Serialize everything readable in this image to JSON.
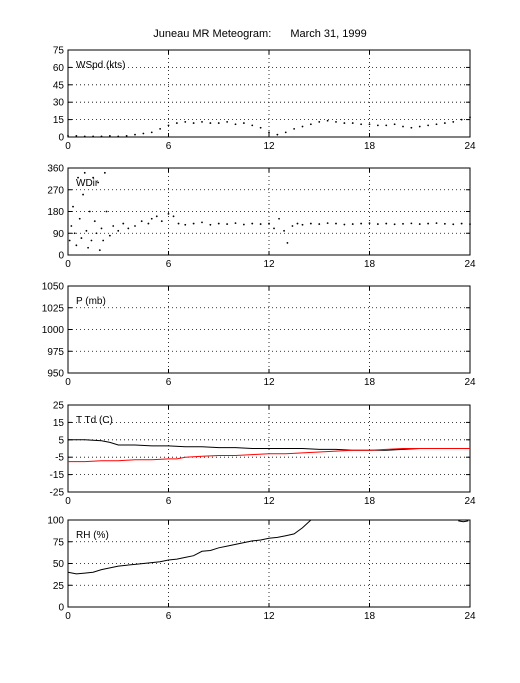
{
  "title": "Juneau MR Meteogram:",
  "date": "March 31, 1999",
  "chart_data": [
    {
      "type": "scatter",
      "label": "WSpd (kts)",
      "xlim": [
        0,
        24
      ],
      "ylim": [
        0,
        75
      ],
      "xticks": [
        "0",
        "6",
        "12",
        "18",
        "24"
      ],
      "yticks": [
        "0",
        "15",
        "30",
        "45",
        "60",
        "75"
      ],
      "grid": true,
      "series": [
        {
          "color": "#000000",
          "x": [
            0,
            0.5,
            1,
            1.5,
            2,
            2.5,
            3,
            3.5,
            4,
            4.5,
            5,
            5.5,
            6,
            6.5,
            7,
            7.5,
            8,
            8.5,
            9,
            9.5,
            10,
            10.5,
            11,
            11.5,
            12,
            12.5,
            13,
            13.5,
            14,
            14.5,
            15,
            15.5,
            16,
            16.5,
            17,
            17.5,
            18,
            18.5,
            19,
            19.5,
            20,
            20.5,
            21,
            21.5,
            22,
            22.5,
            23,
            23.5,
            24
          ],
          "y": [
            1,
            1,
            0.5,
            0.5,
            0.5,
            1,
            0.5,
            1,
            2,
            3,
            4,
            7,
            10,
            12,
            13,
            12,
            13,
            12,
            12,
            13,
            11,
            12,
            10,
            8,
            4,
            2,
            4,
            7,
            9,
            11,
            13,
            14,
            13,
            12,
            12,
            11,
            11,
            10,
            10,
            11,
            9,
            8,
            9,
            10,
            11,
            12,
            13,
            15,
            17
          ]
        }
      ]
    },
    {
      "type": "scatter",
      "label": "WDir",
      "xlim": [
        0,
        24
      ],
      "ylim": [
        0,
        360
      ],
      "xticks": [
        "0",
        "6",
        "12",
        "18",
        "24"
      ],
      "yticks": [
        "0",
        "90",
        "180",
        "270",
        "360"
      ],
      "grid": true,
      "series": [
        {
          "color": "#000000",
          "x": [
            0.1,
            0.2,
            0.3,
            0.4,
            0.5,
            0.6,
            0.7,
            0.8,
            0.9,
            1.0,
            1.1,
            1.2,
            1.3,
            1.4,
            1.5,
            1.6,
            1.7,
            1.8,
            1.9,
            2.0,
            2.1,
            2.2,
            2.3,
            2.5,
            2.7,
            3.0,
            3.3,
            3.6,
            4.0,
            4.4,
            4.8,
            5.0,
            5.3,
            5.6,
            6.0,
            6.3,
            6.6,
            7,
            7.5,
            8,
            8.5,
            9,
            9.5,
            10,
            10.5,
            11,
            11.5,
            12,
            12.3,
            12.6,
            12.9,
            13.1,
            13.4,
            13.7,
            14,
            14.5,
            15,
            15.5,
            16,
            16.5,
            17,
            17.5,
            18,
            18.5,
            19,
            19.5,
            20,
            20.5,
            21,
            21.5,
            22,
            22.5,
            23,
            23.5,
            24
          ],
          "y": [
            60,
            120,
            200,
            90,
            40,
            320,
            150,
            70,
            250,
            340,
            100,
            30,
            180,
            60,
            320,
            140,
            90,
            300,
            20,
            110,
            60,
            340,
            180,
            80,
            120,
            100,
            130,
            110,
            120,
            140,
            130,
            150,
            160,
            140,
            170,
            160,
            130,
            125,
            130,
            135,
            125,
            130,
            128,
            132,
            126,
            130,
            128,
            130,
            110,
            150,
            100,
            50,
            120,
            130,
            125,
            130,
            128,
            132,
            130,
            126,
            128,
            130,
            132,
            128,
            130,
            127,
            129,
            131,
            128,
            130,
            132,
            129,
            127,
            130,
            128
          ]
        }
      ]
    },
    {
      "type": "line",
      "label": "P (mb)",
      "xlim": [
        0,
        24
      ],
      "ylim": [
        950,
        1050
      ],
      "xticks": [
        "0",
        "6",
        "12",
        "18",
        "24"
      ],
      "yticks": [
        "950",
        "975",
        "1000",
        "1025",
        "1050"
      ],
      "grid": true,
      "series": []
    },
    {
      "type": "line",
      "label": "T Td (C)",
      "xlim": [
        0,
        24
      ],
      "ylim": [
        -25,
        25
      ],
      "xticks": [
        "0",
        "6",
        "12",
        "18",
        "24"
      ],
      "yticks": [
        "-25",
        "-15",
        "-5",
        "5",
        "15",
        "25"
      ],
      "grid": true,
      "series": [
        {
          "color": "#000000",
          "x": [
            0,
            1,
            2,
            2.5,
            3,
            4,
            5,
            6,
            7,
            8,
            9,
            10,
            11,
            12,
            13,
            14,
            15,
            16,
            17,
            18,
            19,
            20,
            21,
            22,
            23,
            24
          ],
          "y": [
            5,
            5,
            4.5,
            3.5,
            2,
            2,
            1.5,
            1.5,
            1,
            1,
            0.5,
            0.5,
            0,
            0,
            0,
            0,
            -0.5,
            -0.5,
            -1,
            -1,
            -1,
            -0.5,
            0,
            0,
            0,
            0
          ]
        },
        {
          "color": "#ff0000",
          "x": [
            0,
            1,
            2,
            3,
            4,
            5,
            6,
            6.5,
            7,
            8,
            9,
            10,
            11,
            12,
            13,
            14,
            15,
            16,
            17,
            18,
            19,
            20,
            21,
            22,
            23,
            24
          ],
          "y": [
            -7.5,
            -7.5,
            -7,
            -7,
            -6.5,
            -6.5,
            -6,
            -6,
            -5,
            -4.5,
            -4,
            -4,
            -3.5,
            -3,
            -3,
            -2.5,
            -2,
            -1.5,
            -1,
            -1,
            -0.5,
            0,
            0,
            0,
            0,
            0
          ]
        }
      ]
    },
    {
      "type": "line",
      "label": "RH (%)",
      "xlim": [
        0,
        24
      ],
      "ylim": [
        0,
        100
      ],
      "xticks": [
        "0",
        "6",
        "12",
        "18",
        "24"
      ],
      "yticks": [
        "0",
        "25",
        "50",
        "75",
        "100"
      ],
      "grid": true,
      "series": [
        {
          "color": "#000000",
          "x": [
            0,
            0.5,
            1,
            1.5,
            2,
            2.5,
            3,
            3.5,
            4,
            4.5,
            5,
            5.5,
            6,
            6.5,
            7,
            7.5,
            8,
            8.5,
            9,
            9.5,
            10,
            10.5,
            11,
            11.5,
            12,
            12.5,
            13,
            13.5,
            14,
            14.5
          ],
          "y": [
            40,
            38,
            39,
            40,
            43,
            45,
            47,
            48,
            49,
            50,
            51,
            52,
            54,
            55,
            57,
            59,
            64,
            65,
            68,
            70,
            72,
            74,
            76,
            77,
            79,
            80,
            82,
            84,
            91,
            100
          ]
        },
        {
          "color": "#000000",
          "x": [
            23.3,
            23.6,
            23.9
          ],
          "y": [
            99,
            98,
            99
          ]
        }
      ]
    }
  ]
}
